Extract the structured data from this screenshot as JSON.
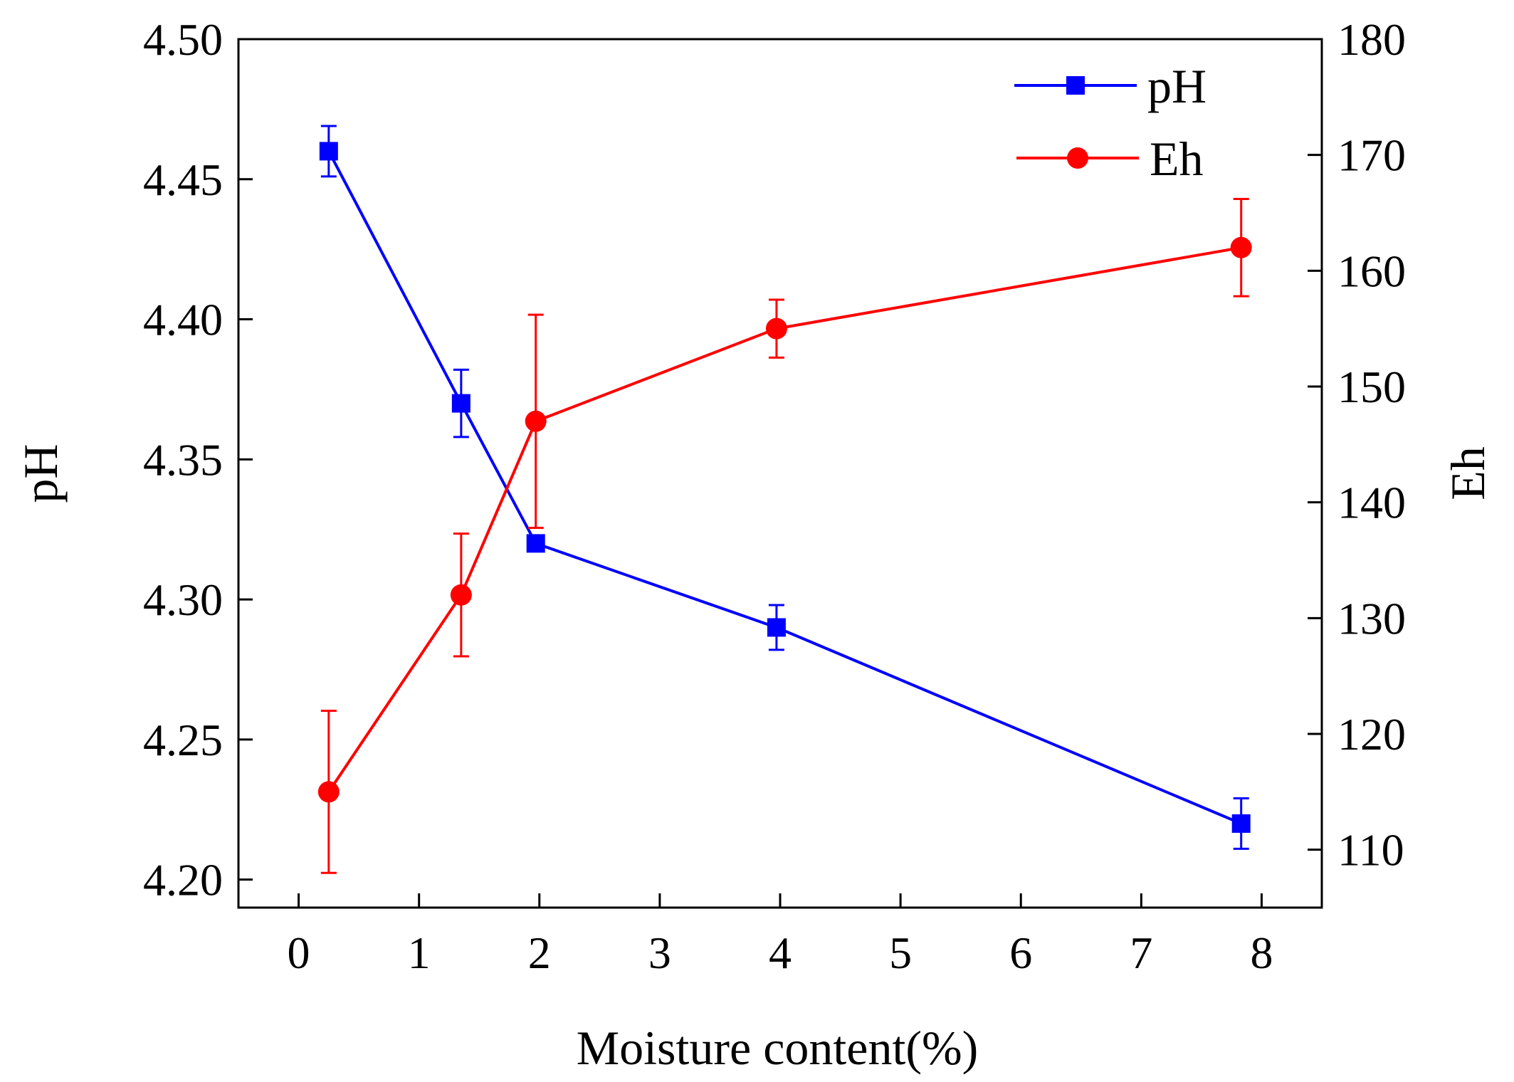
{
  "chart_data": {
    "type": "line",
    "title": "",
    "xlabel": "Moisture content(%)",
    "ylabel_left": "pH",
    "ylabel_right": "Eh",
    "xlim": [
      -0.5,
      8.5
    ],
    "ylim_left": [
      4.19,
      4.5
    ],
    "ylim_right": [
      105,
      180
    ],
    "x_ticks": [
      0,
      1,
      2,
      3,
      4,
      5,
      6,
      7,
      8
    ],
    "x_tick_labels": [
      "0",
      "1",
      "2",
      "3",
      "4",
      "5",
      "6",
      "7",
      "8"
    ],
    "y_left_ticks": [
      4.2,
      4.25,
      4.3,
      4.35,
      4.4,
      4.45,
      4.5
    ],
    "y_left_tick_labels": [
      "4.20",
      "4.25",
      "4.30",
      "4.35",
      "4.40",
      "4.45",
      "4.50"
    ],
    "y_right_ticks": [
      110,
      120,
      130,
      140,
      150,
      160,
      170,
      180
    ],
    "y_right_tick_labels": [
      "110",
      "120",
      "130",
      "140",
      "150",
      "160",
      "170",
      "180"
    ],
    "legend_position": "top-right",
    "series": [
      {
        "name": "pH",
        "axis": "left",
        "color": "#0000ff",
        "marker": "square",
        "x": [
          0.25,
          1.35,
          1.97,
          3.97,
          7.83
        ],
        "values": [
          4.46,
          4.37,
          4.32,
          4.29,
          4.22
        ],
        "errors": [
          0.009,
          0.012,
          0.002,
          0.008,
          0.009
        ]
      },
      {
        "name": "Eh",
        "axis": "right",
        "color": "#ff0000",
        "marker": "circle",
        "x": [
          0.25,
          1.35,
          1.97,
          3.97,
          7.83
        ],
        "values": [
          115,
          132,
          147,
          155,
          162
        ],
        "errors": [
          7,
          5.3,
          9.2,
          2.5,
          4.2
        ]
      }
    ]
  }
}
